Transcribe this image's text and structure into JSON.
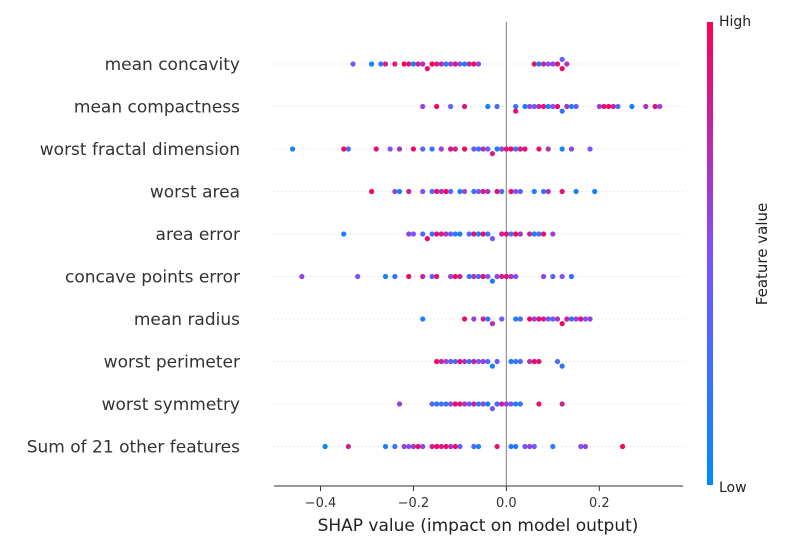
{
  "chart_data": {
    "type": "scatter",
    "subtype": "beeswarm",
    "xlabel": "SHAP value (impact on model output)",
    "xlim": [
      -0.5,
      0.38
    ],
    "xticks": [
      -0.4,
      -0.2,
      0.0,
      0.2
    ],
    "xtick_labels": [
      "−0.4",
      "−0.2",
      "0.0",
      "0.2"
    ],
    "zero_line": true,
    "colorbar": {
      "label": "Feature value",
      "high_label": "High",
      "low_label": "Low",
      "low_color": "#008bfb",
      "mid_color": "#7c52ff",
      "high_color": "#ff0052"
    },
    "features": [
      {
        "name": "mean concavity",
        "points": [
          [
            -0.33,
            0.5
          ],
          [
            -0.29,
            0.05
          ],
          [
            -0.27,
            0.2
          ],
          [
            -0.26,
            0.8
          ],
          [
            -0.24,
            0.85
          ],
          [
            -0.22,
            0.95
          ],
          [
            -0.21,
            0.9
          ],
          [
            -0.2,
            0.1
          ],
          [
            -0.19,
            0.8
          ],
          [
            -0.18,
            0.7
          ],
          [
            -0.17,
            0.9
          ],
          [
            -0.16,
            1.0
          ],
          [
            -0.15,
            0.85
          ],
          [
            -0.14,
            0.75
          ],
          [
            -0.13,
            0.2
          ],
          [
            -0.12,
            0.6
          ],
          [
            -0.11,
            0.9
          ],
          [
            -0.1,
            0.5
          ],
          [
            -0.09,
            0.1
          ],
          [
            -0.08,
            0.8
          ],
          [
            -0.07,
            0.95
          ],
          [
            -0.06,
            0.6
          ],
          [
            0.07,
            0.1
          ],
          [
            0.06,
            0.9
          ],
          [
            0.08,
            0.8
          ],
          [
            0.09,
            0.5
          ],
          [
            0.1,
            0.6
          ],
          [
            0.11,
            0.9
          ],
          [
            0.12,
            0.95
          ],
          [
            0.13,
            0.7
          ],
          [
            0.12,
            0.4
          ]
        ]
      },
      {
        "name": "mean compactness",
        "points": [
          [
            -0.18,
            0.6
          ],
          [
            -0.15,
            0.95
          ],
          [
            -0.12,
            0.4
          ],
          [
            -0.09,
            0.9
          ],
          [
            -0.04,
            0.1
          ],
          [
            -0.02,
            0.3
          ],
          [
            0.02,
            0.2
          ],
          [
            0.02,
            0.9
          ],
          [
            0.04,
            0.1
          ],
          [
            0.05,
            0.6
          ],
          [
            0.06,
            0.4
          ],
          [
            0.07,
            0.8
          ],
          [
            0.08,
            0.9
          ],
          [
            0.09,
            0.1
          ],
          [
            0.1,
            0.5
          ],
          [
            0.11,
            0.95
          ],
          [
            0.12,
            0.2
          ],
          [
            0.13,
            0.7
          ],
          [
            0.14,
            0.1
          ],
          [
            0.15,
            0.4
          ],
          [
            0.2,
            0.6
          ],
          [
            0.21,
            0.9
          ],
          [
            0.22,
            0.95
          ],
          [
            0.23,
            0.8
          ],
          [
            0.24,
            0.3
          ],
          [
            0.27,
            0.1
          ],
          [
            0.3,
            0.7
          ],
          [
            0.32,
            0.9
          ],
          [
            0.33,
            0.6
          ]
        ]
      },
      {
        "name": "worst fractal dimension",
        "points": [
          [
            -0.46,
            0.1
          ],
          [
            -0.35,
            0.95
          ],
          [
            -0.34,
            0.3
          ],
          [
            -0.28,
            0.9
          ],
          [
            -0.25,
            0.5
          ],
          [
            -0.23,
            0.7
          ],
          [
            -0.2,
            0.95
          ],
          [
            -0.18,
            0.3
          ],
          [
            -0.16,
            0.2
          ],
          [
            -0.14,
            0.6
          ],
          [
            -0.12,
            0.9
          ],
          [
            -0.11,
            0.8
          ],
          [
            -0.09,
            0.95
          ],
          [
            -0.07,
            0.4
          ],
          [
            -0.06,
            0.2
          ],
          [
            -0.05,
            0.7
          ],
          [
            -0.04,
            0.5
          ],
          [
            -0.03,
            0.8
          ],
          [
            -0.02,
            0.1
          ],
          [
            -0.01,
            0.6
          ],
          [
            0.0,
            0.9
          ],
          [
            0.01,
            0.95
          ],
          [
            0.02,
            0.3
          ],
          [
            0.03,
            0.85
          ],
          [
            0.04,
            0.9
          ],
          [
            0.07,
            0.9
          ],
          [
            0.09,
            0.7
          ],
          [
            0.12,
            0.1
          ],
          [
            0.14,
            0.6
          ],
          [
            0.18,
            0.5
          ]
        ]
      },
      {
        "name": "worst area",
        "points": [
          [
            -0.29,
            0.95
          ],
          [
            -0.24,
            0.6
          ],
          [
            -0.23,
            0.1
          ],
          [
            -0.21,
            0.8
          ],
          [
            -0.18,
            0.5
          ],
          [
            -0.16,
            0.3
          ],
          [
            -0.15,
            0.9
          ],
          [
            -0.14,
            0.7
          ],
          [
            -0.13,
            0.95
          ],
          [
            -0.12,
            0.4
          ],
          [
            -0.1,
            0.1
          ],
          [
            -0.09,
            0.6
          ],
          [
            -0.07,
            0.2
          ],
          [
            -0.06,
            0.5
          ],
          [
            -0.05,
            0.8
          ],
          [
            -0.04,
            0.7
          ],
          [
            -0.02,
            0.9
          ],
          [
            -0.01,
            0.3
          ],
          [
            0.01,
            0.95
          ],
          [
            0.02,
            0.5
          ],
          [
            0.03,
            0.4
          ],
          [
            0.06,
            0.1
          ],
          [
            0.08,
            0.2
          ],
          [
            0.09,
            0.7
          ],
          [
            0.12,
            0.9
          ],
          [
            0.15,
            0.1
          ],
          [
            0.19,
            0.1
          ]
        ]
      },
      {
        "name": "area error",
        "points": [
          [
            -0.35,
            0.1
          ],
          [
            -0.21,
            0.6
          ],
          [
            -0.2,
            0.5
          ],
          [
            -0.18,
            0.3
          ],
          [
            -0.17,
            0.95
          ],
          [
            -0.16,
            0.2
          ],
          [
            -0.15,
            0.9
          ],
          [
            -0.14,
            0.85
          ],
          [
            -0.13,
            0.7
          ],
          [
            -0.12,
            0.4
          ],
          [
            -0.11,
            0.2
          ],
          [
            -0.1,
            0.1
          ],
          [
            -0.08,
            0.3
          ],
          [
            -0.07,
            0.9
          ],
          [
            -0.06,
            0.1
          ],
          [
            -0.05,
            0.95
          ],
          [
            -0.04,
            0.2
          ],
          [
            -0.03,
            0.5
          ],
          [
            -0.01,
            0.8
          ],
          [
            0.0,
            0.9
          ],
          [
            0.01,
            0.2
          ],
          [
            0.02,
            0.95
          ],
          [
            0.03,
            0.7
          ],
          [
            0.05,
            0.8
          ],
          [
            0.06,
            0.1
          ],
          [
            0.07,
            0.3
          ],
          [
            0.08,
            0.9
          ],
          [
            0.1,
            0.6
          ]
        ]
      },
      {
        "name": "concave points error",
        "points": [
          [
            -0.44,
            0.6
          ],
          [
            -0.32,
            0.5
          ],
          [
            -0.26,
            0.1
          ],
          [
            -0.24,
            0.2
          ],
          [
            -0.21,
            0.95
          ],
          [
            -0.18,
            0.8
          ],
          [
            -0.16,
            0.4
          ],
          [
            -0.15,
            0.9
          ],
          [
            -0.12,
            0.6
          ],
          [
            -0.11,
            0.95
          ],
          [
            -0.1,
            0.8
          ],
          [
            -0.08,
            0.2
          ],
          [
            -0.07,
            0.7
          ],
          [
            -0.06,
            0.3
          ],
          [
            -0.05,
            0.9
          ],
          [
            -0.04,
            0.5
          ],
          [
            -0.03,
            0.1
          ],
          [
            -0.02,
            0.6
          ],
          [
            -0.01,
            0.8
          ],
          [
            0.0,
            0.9
          ],
          [
            0.01,
            0.7
          ],
          [
            0.02,
            0.5
          ],
          [
            0.08,
            0.6
          ],
          [
            0.1,
            0.4
          ],
          [
            0.12,
            0.5
          ],
          [
            0.14,
            0.2
          ]
        ]
      },
      {
        "name": "mean radius",
        "points": [
          [
            -0.18,
            0.1
          ],
          [
            -0.09,
            0.95
          ],
          [
            -0.07,
            0.6
          ],
          [
            -0.05,
            0.8
          ],
          [
            -0.04,
            0.2
          ],
          [
            -0.03,
            0.7
          ],
          [
            -0.01,
            0.5
          ],
          [
            0.02,
            0.1
          ],
          [
            0.03,
            0.3
          ],
          [
            0.05,
            0.95
          ],
          [
            0.06,
            0.6
          ],
          [
            0.07,
            0.9
          ],
          [
            0.08,
            0.85
          ],
          [
            0.09,
            0.5
          ],
          [
            0.1,
            0.4
          ],
          [
            0.11,
            0.7
          ],
          [
            0.12,
            0.95
          ],
          [
            0.13,
            0.8
          ],
          [
            0.14,
            0.2
          ],
          [
            0.15,
            0.6
          ],
          [
            0.16,
            0.9
          ],
          [
            0.17,
            0.5
          ],
          [
            0.18,
            0.6
          ]
        ]
      },
      {
        "name": "worst perimeter",
        "points": [
          [
            -0.15,
            0.95
          ],
          [
            -0.14,
            0.8
          ],
          [
            -0.13,
            0.6
          ],
          [
            -0.12,
            0.4
          ],
          [
            -0.11,
            0.3
          ],
          [
            -0.1,
            0.9
          ],
          [
            -0.09,
            0.7
          ],
          [
            -0.08,
            0.2
          ],
          [
            -0.07,
            0.8
          ],
          [
            -0.06,
            0.5
          ],
          [
            -0.05,
            0.6
          ],
          [
            -0.04,
            0.3
          ],
          [
            -0.03,
            0.1
          ],
          [
            -0.02,
            0.4
          ],
          [
            0.01,
            0.1
          ],
          [
            0.02,
            0.2
          ],
          [
            0.03,
            0.3
          ],
          [
            0.05,
            0.7
          ],
          [
            0.06,
            0.95
          ],
          [
            0.07,
            0.9
          ],
          [
            0.11,
            0.3
          ],
          [
            0.12,
            0.2
          ]
        ]
      },
      {
        "name": "worst symmetry",
        "points": [
          [
            -0.23,
            0.6
          ],
          [
            -0.16,
            0.4
          ],
          [
            -0.15,
            0.1
          ],
          [
            -0.14,
            0.3
          ],
          [
            -0.13,
            0.2
          ],
          [
            -0.12,
            0.5
          ],
          [
            -0.11,
            0.95
          ],
          [
            -0.1,
            0.9
          ],
          [
            -0.09,
            0.7
          ],
          [
            -0.08,
            0.4
          ],
          [
            -0.07,
            0.8
          ],
          [
            -0.06,
            0.2
          ],
          [
            -0.05,
            0.6
          ],
          [
            -0.04,
            0.1
          ],
          [
            -0.03,
            0.5
          ],
          [
            -0.02,
            0.3
          ],
          [
            -0.01,
            0.8
          ],
          [
            0.0,
            0.6
          ],
          [
            0.01,
            0.5
          ],
          [
            0.02,
            0.1
          ],
          [
            0.03,
            0.2
          ],
          [
            0.07,
            0.9
          ],
          [
            0.12,
            0.8
          ]
        ]
      },
      {
        "name": "Sum of 21 other features",
        "points": [
          [
            -0.39,
            0.05
          ],
          [
            -0.34,
            0.8
          ],
          [
            -0.26,
            0.1
          ],
          [
            -0.24,
            0.2
          ],
          [
            -0.22,
            0.6
          ],
          [
            -0.21,
            0.5
          ],
          [
            -0.2,
            0.7
          ],
          [
            -0.19,
            0.9
          ],
          [
            -0.18,
            0.6
          ],
          [
            -0.16,
            0.8
          ],
          [
            -0.15,
            0.95
          ],
          [
            -0.14,
            0.85
          ],
          [
            -0.13,
            0.9
          ],
          [
            -0.12,
            0.7
          ],
          [
            -0.11,
            0.95
          ],
          [
            -0.1,
            0.4
          ],
          [
            -0.07,
            0.3
          ],
          [
            -0.06,
            0.1
          ],
          [
            -0.02,
            0.9
          ],
          [
            0.01,
            0.2
          ],
          [
            0.02,
            0.1
          ],
          [
            0.04,
            0.5
          ],
          [
            0.05,
            0.6
          ],
          [
            0.06,
            0.4
          ],
          [
            0.1,
            0.2
          ],
          [
            0.16,
            0.5
          ],
          [
            0.17,
            0.6
          ],
          [
            0.25,
            0.95
          ]
        ]
      }
    ]
  }
}
